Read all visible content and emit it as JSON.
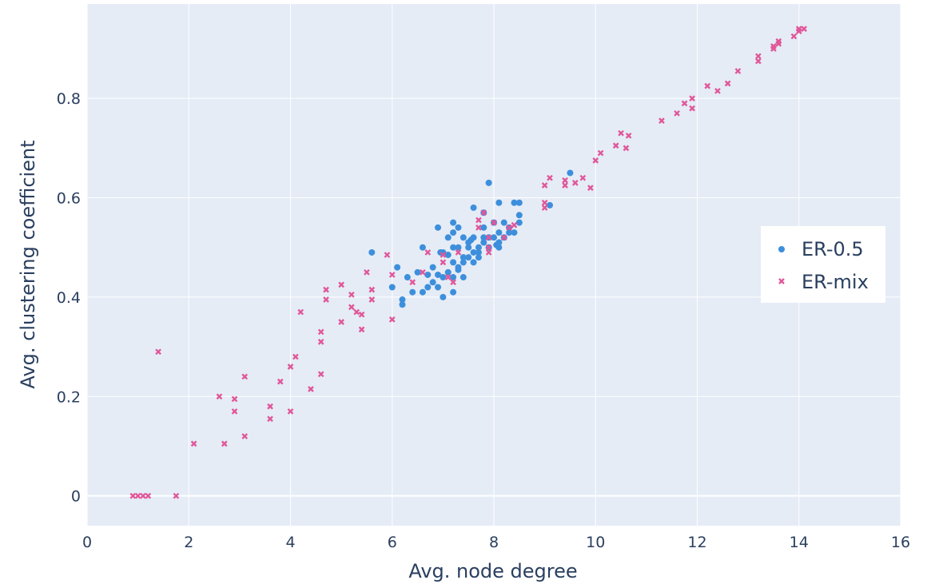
{
  "chart_data": {
    "type": "scatter",
    "title": "",
    "xlabel": "Avg. node degree",
    "ylabel": "Avg. clustering coefficient",
    "xlim": [
      0,
      16
    ],
    "ylim": [
      -0.06,
      0.99
    ],
    "xticks": [
      0,
      2,
      4,
      6,
      8,
      10,
      12,
      14,
      16
    ],
    "xtick_labels": [
      "0",
      "2",
      "4",
      "6",
      "8",
      "10",
      "12",
      "14",
      "16"
    ],
    "yticks": [
      0,
      0.2,
      0.4,
      0.6,
      0.8
    ],
    "ytick_labels": [
      "0",
      "0.2",
      "0.4",
      "0.6",
      "0.8"
    ],
    "grid": true,
    "legend_position": "right",
    "colors": {
      "plot_bg": "#e5ecf6",
      "grid": "#ffffff",
      "text": "#2a3f5f"
    },
    "series": [
      {
        "name": "ER-0.5",
        "marker": "circle",
        "color": "#3d8fdc",
        "points": [
          [
            5.6,
            0.49
          ],
          [
            6.1,
            0.46
          ],
          [
            6.0,
            0.42
          ],
          [
            6.3,
            0.44
          ],
          [
            6.2,
            0.395
          ],
          [
            6.2,
            0.385
          ],
          [
            6.5,
            0.45
          ],
          [
            6.4,
            0.41
          ],
          [
            6.6,
            0.41
          ],
          [
            6.6,
            0.5
          ],
          [
            6.7,
            0.42
          ],
          [
            6.8,
            0.43
          ],
          [
            6.7,
            0.445
          ],
          [
            6.9,
            0.445
          ],
          [
            6.8,
            0.46
          ],
          [
            6.9,
            0.42
          ],
          [
            6.9,
            0.54
          ],
          [
            7.0,
            0.49
          ],
          [
            7.0,
            0.4
          ],
          [
            7.0,
            0.44
          ],
          [
            7.1,
            0.485
          ],
          [
            7.1,
            0.45
          ],
          [
            7.2,
            0.44
          ],
          [
            7.2,
            0.41
          ],
          [
            7.1,
            0.52
          ],
          [
            7.2,
            0.53
          ],
          [
            7.2,
            0.55
          ],
          [
            7.2,
            0.47
          ],
          [
            7.2,
            0.5
          ],
          [
            7.3,
            0.455
          ],
          [
            7.3,
            0.46
          ],
          [
            7.3,
            0.5
          ],
          [
            7.4,
            0.52
          ],
          [
            7.4,
            0.48
          ],
          [
            7.4,
            0.44
          ],
          [
            7.4,
            0.47
          ],
          [
            7.5,
            0.48
          ],
          [
            7.5,
            0.5
          ],
          [
            7.5,
            0.51
          ],
          [
            7.6,
            0.47
          ],
          [
            7.6,
            0.49
          ],
          [
            7.6,
            0.58
          ],
          [
            7.6,
            0.52
          ],
          [
            7.7,
            0.5
          ],
          [
            7.7,
            0.48
          ],
          [
            7.7,
            0.49
          ],
          [
            7.8,
            0.51
          ],
          [
            7.8,
            0.52
          ],
          [
            7.8,
            0.54
          ],
          [
            7.8,
            0.57
          ],
          [
            7.9,
            0.63
          ],
          [
            7.9,
            0.5
          ],
          [
            7.9,
            0.52
          ],
          [
            8.0,
            0.55
          ],
          [
            8.0,
            0.52
          ],
          [
            8.1,
            0.5
          ],
          [
            8.1,
            0.51
          ],
          [
            8.1,
            0.53
          ],
          [
            8.1,
            0.59
          ],
          [
            8.2,
            0.55
          ],
          [
            8.2,
            0.52
          ],
          [
            8.3,
            0.53
          ],
          [
            8.3,
            0.54
          ],
          [
            8.4,
            0.53
          ],
          [
            8.4,
            0.59
          ],
          [
            8.5,
            0.55
          ],
          [
            8.5,
            0.565
          ],
          [
            8.5,
            0.59
          ],
          [
            9.1,
            0.585
          ],
          [
            9.5,
            0.65
          ],
          [
            7.3,
            0.54
          ],
          [
            6.95,
            0.49
          ],
          [
            7.55,
            0.515
          ],
          [
            8.05,
            0.505
          ]
        ]
      },
      {
        "name": "ER-mix",
        "marker": "x",
        "color": "#e0579a",
        "points": [
          [
            0.9,
            0.0
          ],
          [
            1.0,
            0.0
          ],
          [
            1.1,
            0.0
          ],
          [
            1.2,
            0.0
          ],
          [
            1.75,
            0.0
          ],
          [
            1.4,
            0.29
          ],
          [
            2.1,
            0.105
          ],
          [
            2.7,
            0.105
          ],
          [
            2.6,
            0.2
          ],
          [
            2.9,
            0.195
          ],
          [
            2.9,
            0.17
          ],
          [
            3.1,
            0.24
          ],
          [
            3.1,
            0.12
          ],
          [
            3.6,
            0.18
          ],
          [
            3.6,
            0.155
          ],
          [
            3.8,
            0.23
          ],
          [
            4.0,
            0.26
          ],
          [
            4.0,
            0.17
          ],
          [
            4.1,
            0.28
          ],
          [
            4.2,
            0.37
          ],
          [
            4.4,
            0.215
          ],
          [
            4.6,
            0.33
          ],
          [
            4.6,
            0.31
          ],
          [
            4.6,
            0.245
          ],
          [
            4.7,
            0.415
          ],
          [
            4.7,
            0.395
          ],
          [
            5.0,
            0.425
          ],
          [
            5.0,
            0.35
          ],
          [
            5.2,
            0.405
          ],
          [
            5.2,
            0.38
          ],
          [
            5.3,
            0.37
          ],
          [
            5.4,
            0.335
          ],
          [
            5.4,
            0.365
          ],
          [
            5.5,
            0.45
          ],
          [
            5.6,
            0.415
          ],
          [
            5.6,
            0.395
          ],
          [
            5.9,
            0.485
          ],
          [
            6.0,
            0.355
          ],
          [
            6.0,
            0.445
          ],
          [
            6.4,
            0.43
          ],
          [
            6.6,
            0.45
          ],
          [
            6.7,
            0.49
          ],
          [
            7.0,
            0.47
          ],
          [
            7.0,
            0.485
          ],
          [
            7.1,
            0.44
          ],
          [
            7.2,
            0.43
          ],
          [
            7.3,
            0.49
          ],
          [
            7.7,
            0.54
          ],
          [
            7.7,
            0.555
          ],
          [
            7.8,
            0.57
          ],
          [
            7.9,
            0.5
          ],
          [
            7.9,
            0.52
          ],
          [
            7.9,
            0.49
          ],
          [
            8.0,
            0.55
          ],
          [
            8.2,
            0.52
          ],
          [
            8.3,
            0.54
          ],
          [
            8.4,
            0.545
          ],
          [
            9.0,
            0.625
          ],
          [
            9.0,
            0.58
          ],
          [
            9.0,
            0.59
          ],
          [
            9.1,
            0.64
          ],
          [
            9.4,
            0.625
          ],
          [
            9.4,
            0.635
          ],
          [
            9.6,
            0.63
          ],
          [
            9.75,
            0.64
          ],
          [
            9.9,
            0.62
          ],
          [
            10.0,
            0.675
          ],
          [
            10.1,
            0.69
          ],
          [
            10.4,
            0.705
          ],
          [
            10.5,
            0.73
          ],
          [
            10.6,
            0.7
          ],
          [
            10.65,
            0.725
          ],
          [
            11.3,
            0.755
          ],
          [
            11.6,
            0.77
          ],
          [
            11.75,
            0.79
          ],
          [
            11.9,
            0.78
          ],
          [
            11.9,
            0.8
          ],
          [
            12.2,
            0.825
          ],
          [
            12.4,
            0.815
          ],
          [
            12.6,
            0.83
          ],
          [
            12.8,
            0.855
          ],
          [
            13.2,
            0.875
          ],
          [
            13.2,
            0.885
          ],
          [
            13.5,
            0.9
          ],
          [
            13.5,
            0.905
          ],
          [
            13.6,
            0.915
          ],
          [
            13.6,
            0.91
          ],
          [
            13.9,
            0.925
          ],
          [
            14.0,
            0.94
          ],
          [
            14.0,
            0.935
          ],
          [
            14.1,
            0.94
          ]
        ]
      }
    ]
  }
}
